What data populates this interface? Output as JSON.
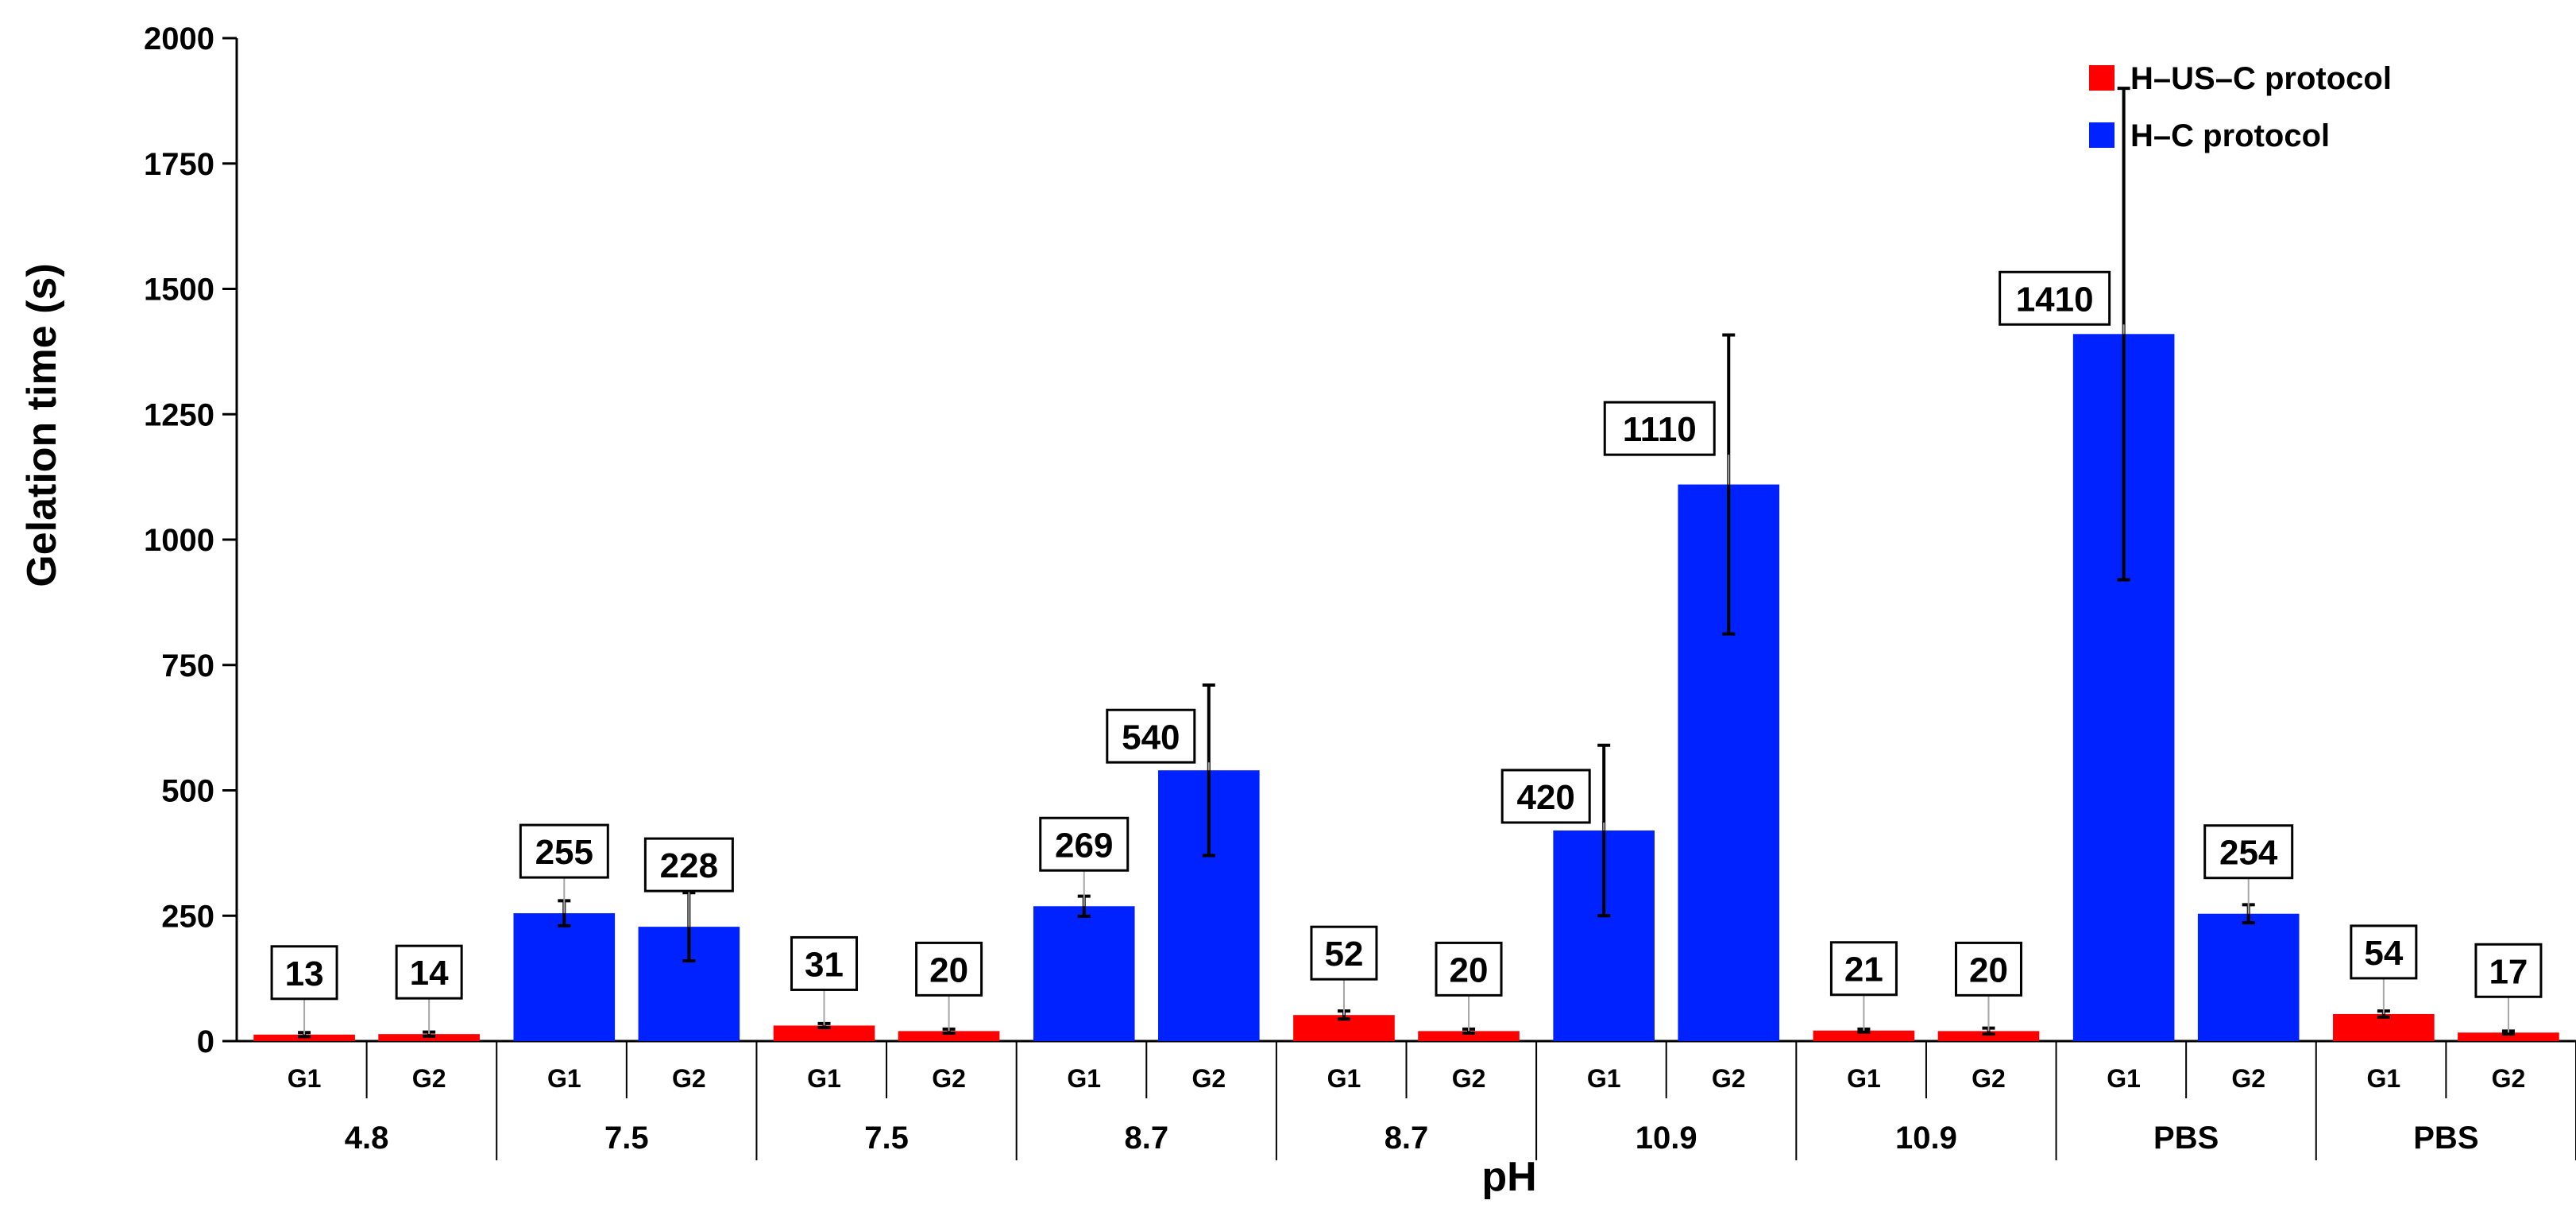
{
  "chart_data": {
    "type": "bar",
    "title": "",
    "xlabel": "pH",
    "ylabel": "Gelation time (s)",
    "ylim": [
      0,
      2000
    ],
    "yticks": [
      0,
      250,
      500,
      750,
      1000,
      1250,
      1500,
      1750,
      2000
    ],
    "grid": false,
    "legend_position": "top-right",
    "series": [
      {
        "name": "H–US–C protocol",
        "color": "#ff0000"
      },
      {
        "name": "H–C protocol",
        "color": "#0022ff"
      }
    ],
    "groups": [
      {
        "category": "4.8",
        "series": "H–US–C protocol",
        "bars": [
          {
            "label": "G1",
            "value": 13,
            "error": 4,
            "data_label": "13"
          },
          {
            "label": "G2",
            "value": 14,
            "error": 4,
            "data_label": "14"
          }
        ]
      },
      {
        "category": "7.5",
        "series": "H–C protocol",
        "bars": [
          {
            "label": "G1",
            "value": 255,
            "error": 25,
            "data_label": "255"
          },
          {
            "label": "G2",
            "value": 228,
            "error": 68,
            "data_label": "228"
          }
        ]
      },
      {
        "category": "7.5",
        "series": "H–US–C protocol",
        "bars": [
          {
            "label": "G1",
            "value": 31,
            "error": 4,
            "data_label": "31"
          },
          {
            "label": "G2",
            "value": 20,
            "error": 4,
            "data_label": "20"
          }
        ]
      },
      {
        "category": "8.7",
        "series": "H–C protocol",
        "bars": [
          {
            "label": "G1",
            "value": 269,
            "error": 20,
            "data_label": "269"
          },
          {
            "label": "G2",
            "value": 540,
            "error": 170,
            "data_label": "540"
          }
        ]
      },
      {
        "category": "8.7",
        "series": "H–US–C protocol",
        "bars": [
          {
            "label": "G1",
            "value": 52,
            "error": 8,
            "data_label": "52"
          },
          {
            "label": "G2",
            "value": 20,
            "error": 4,
            "data_label": "20"
          }
        ]
      },
      {
        "category": "10.9",
        "series": "H–C protocol",
        "bars": [
          {
            "label": "G1",
            "value": 420,
            "error": 170,
            "data_label": "420"
          },
          {
            "label": "G2",
            "value": 1110,
            "error": 298,
            "data_label": "1110"
          }
        ]
      },
      {
        "category": "10.9",
        "series": "H–US–C protocol",
        "bars": [
          {
            "label": "G1",
            "value": 21,
            "error": 3,
            "data_label": "21"
          },
          {
            "label": "G2",
            "value": 20,
            "error": 6,
            "data_label": "20"
          }
        ]
      },
      {
        "category": "PBS",
        "series": "H–C protocol",
        "bars": [
          {
            "label": "G1",
            "value": 1410,
            "error": 490,
            "data_label": "1410"
          },
          {
            "label": "G2",
            "value": 254,
            "error": 18,
            "data_label": "254"
          }
        ]
      },
      {
        "category": "PBS",
        "series": "H–US–C protocol",
        "bars": [
          {
            "label": "G1",
            "value": 54,
            "error": 6,
            "data_label": "54"
          },
          {
            "label": "G2",
            "value": 17,
            "error": 3,
            "data_label": "17"
          }
        ]
      }
    ]
  }
}
